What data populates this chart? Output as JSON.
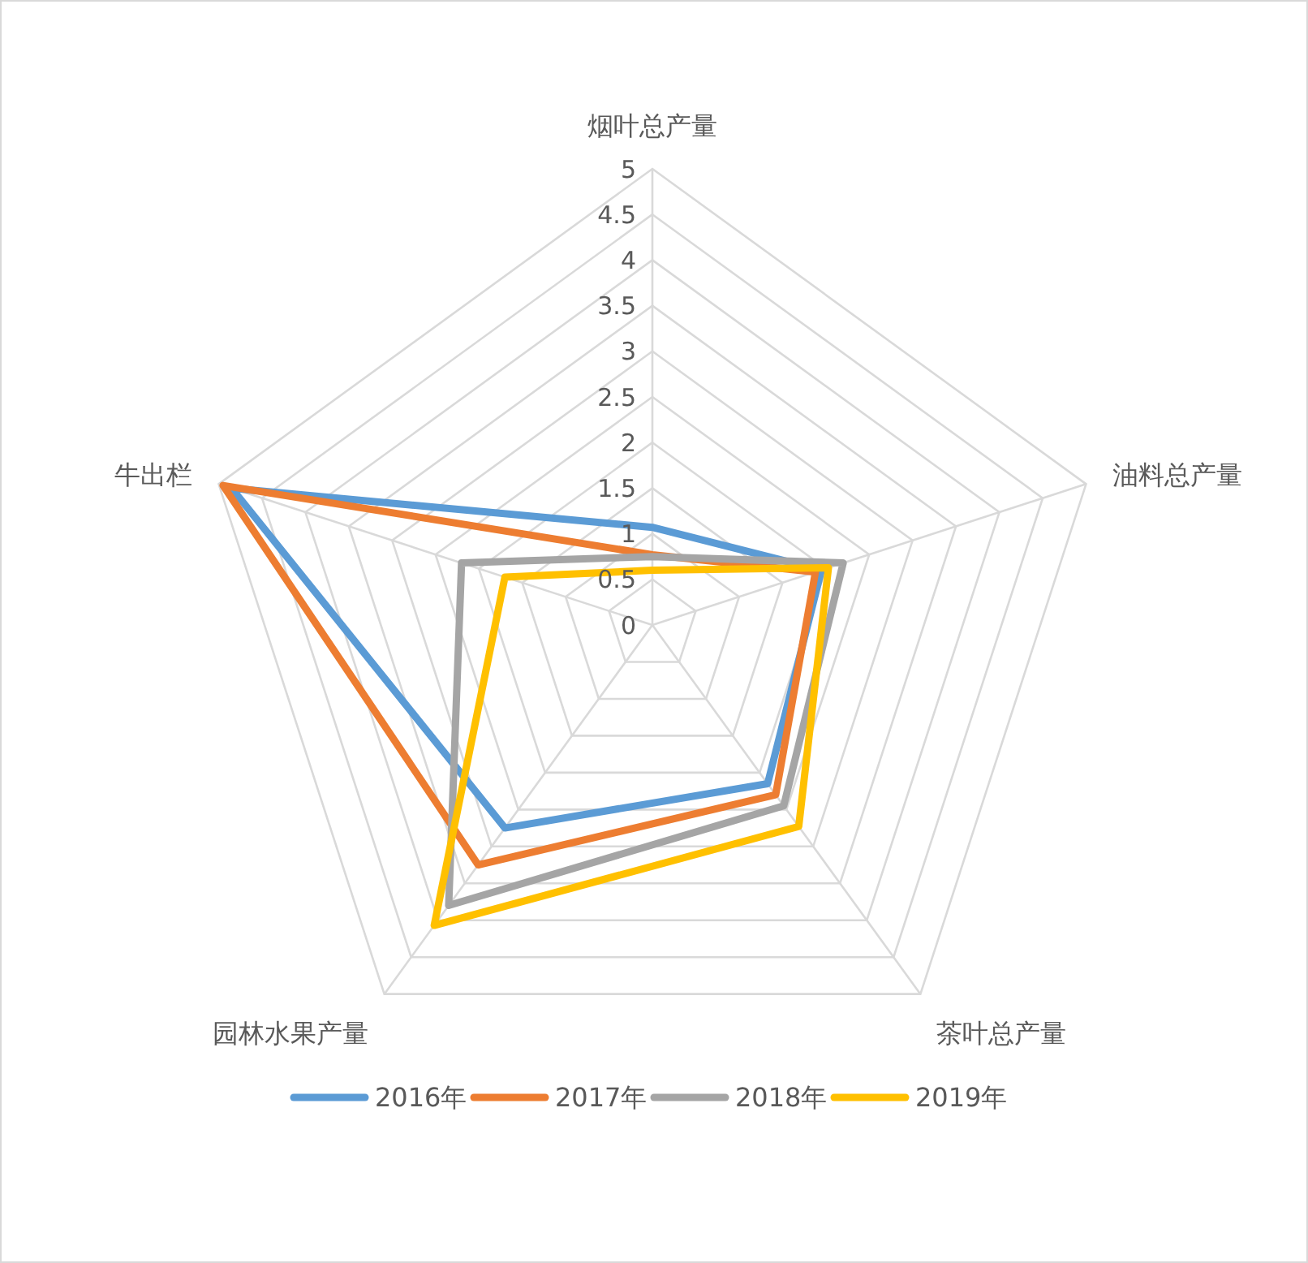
{
  "chart_data": {
    "type": "radar",
    "categories": [
      "烟叶总产量",
      "油料总产量",
      "茶叶总产量",
      "园林水果产量",
      "牛出栏"
    ],
    "series": [
      {
        "name": "2016年",
        "color": "#5b9bd5",
        "values": [
          1.07,
          1.95,
          2.15,
          2.75,
          4.85
        ]
      },
      {
        "name": "2017年",
        "color": "#ed7d31",
        "values": [
          0.77,
          1.88,
          2.3,
          3.25,
          4.95
        ]
      },
      {
        "name": "2018年",
        "color": "#a5a5a5",
        "values": [
          0.75,
          2.2,
          2.45,
          3.8,
          2.2
        ]
      },
      {
        "name": "2019年",
        "color": "#ffc000",
        "values": [
          0.6,
          2.03,
          2.73,
          4.07,
          1.7
        ]
      }
    ],
    "ylim": [
      0,
      5
    ],
    "yticks": [
      0,
      0.5,
      1,
      1.5,
      2,
      2.5,
      3,
      3.5,
      4,
      4.5,
      5
    ],
    "legend": "bottom",
    "grid": true
  }
}
